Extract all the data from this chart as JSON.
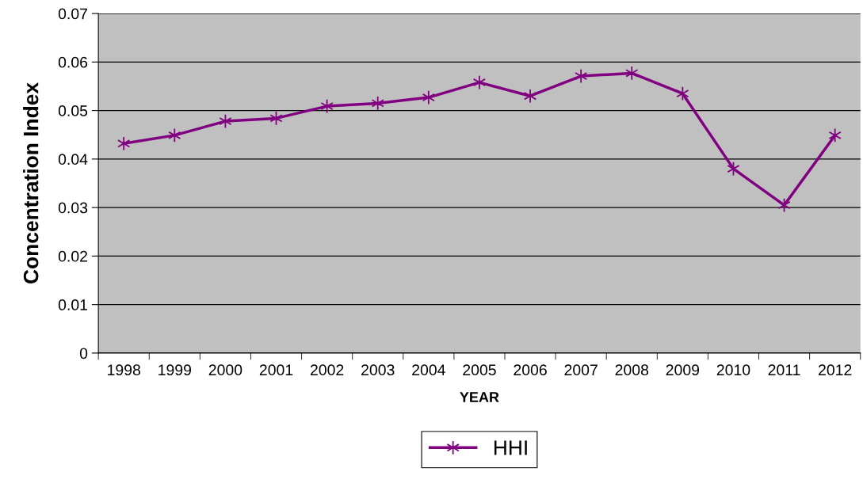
{
  "chart_data": {
    "type": "line",
    "xlabel": "YEAR",
    "ylabel": "Concentration Index",
    "categories": [
      "1998",
      "1999",
      "2000",
      "2001",
      "2002",
      "2003",
      "2004",
      "2005",
      "2006",
      "2007",
      "2008",
      "2009",
      "2010",
      "2011",
      "2012"
    ],
    "series": [
      {
        "name": "HHI",
        "color": "#800080",
        "values": [
          0.0432,
          0.0449,
          0.0478,
          0.0484,
          0.0509,
          0.0515,
          0.0527,
          0.0558,
          0.053,
          0.0571,
          0.0577,
          0.0535,
          0.038,
          0.0305,
          0.0449
        ]
      }
    ],
    "ylim": [
      0,
      0.07
    ],
    "yticks": [
      {
        "value": 0,
        "label": "0"
      },
      0.01,
      0.02,
      0.03,
      0.04,
      0.05,
      0.06,
      0.07
    ],
    "grid": "y",
    "legend": "bottom",
    "marker": "cross",
    "line_style": "solid"
  }
}
